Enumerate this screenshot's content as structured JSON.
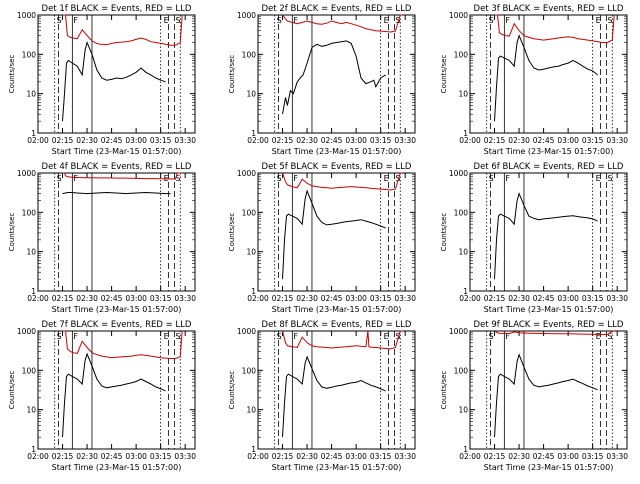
{
  "colors": {
    "events": "#000000",
    "lld": "#d00000",
    "axis": "#000000"
  },
  "shared": {
    "ylabel": "Counts/sec",
    "xlabel": "Start Time (23-Mar-15 01:57:00)",
    "xticks": [
      "02:00",
      "02:15",
      "02:30",
      "02:45",
      "03:00",
      "03:15",
      "03:30"
    ],
    "yticks": [
      "1",
      "10",
      "100",
      "1000"
    ],
    "marker_letters": [
      "S",
      "F",
      "E",
      "S"
    ]
  },
  "chart_data": [
    {
      "type": "line",
      "title": "Det 1f BLACK = Events, RED = LLD",
      "series": [
        {
          "x": [
            2.25,
            2.28,
            2.3,
            2.33,
            2.36,
            2.4,
            2.45,
            2.5,
            2.55,
            2.6,
            2.63,
            2.65,
            2.7,
            2.75,
            2.8,
            2.85,
            2.9,
            2.95,
            3.0,
            3.05,
            3.1,
            3.15,
            3.2,
            3.22,
            3.25,
            3.3,
            3.35,
            3.4,
            3.45,
            3.47
          ],
          "y": [
            1000,
            1000,
            300,
            270,
            260,
            250,
            420,
            300,
            220,
            190,
            180,
            180,
            175,
            190,
            200,
            205,
            210,
            220,
            240,
            260,
            240,
            210,
            200,
            195,
            190,
            180,
            170,
            170,
            200,
            1000
          ]
        },
        {
          "x": [
            2.25,
            2.27,
            2.29,
            2.31,
            2.35,
            2.4,
            2.45,
            2.48,
            2.5,
            2.55,
            2.6,
            2.65,
            2.7,
            2.75,
            2.8,
            2.85,
            2.9,
            2.95,
            3.0,
            3.05,
            3.1,
            3.15,
            3.2,
            3.25,
            3.3
          ],
          "y": [
            2,
            10,
            60,
            70,
            60,
            50,
            30,
            130,
            200,
            100,
            40,
            25,
            22,
            23,
            25,
            24,
            26,
            30,
            35,
            45,
            35,
            30,
            25,
            22,
            20
          ]
        }
      ]
    },
    {
      "type": "line",
      "title": "Det 2f BLACK = Events, RED = LLD",
      "series": [
        {
          "x": [
            2.25,
            2.28,
            2.3,
            2.35,
            2.4,
            2.45,
            2.5,
            2.55,
            2.6,
            2.65,
            2.7,
            2.75,
            2.8,
            2.85,
            2.9,
            2.95,
            3.0,
            3.05,
            3.1,
            3.15,
            3.2,
            3.25,
            3.3,
            3.35,
            3.4,
            3.45,
            3.47
          ],
          "y": [
            1000,
            800,
            700,
            650,
            600,
            650,
            700,
            650,
            600,
            580,
            620,
            700,
            650,
            600,
            650,
            600,
            550,
            500,
            450,
            420,
            400,
            390,
            380,
            370,
            390,
            1000,
            1000
          ]
        },
        {
          "x": [
            2.25,
            2.28,
            2.3,
            2.33,
            2.36,
            2.4,
            2.43,
            2.46,
            2.5,
            2.55,
            2.6,
            2.65,
            2.7,
            2.75,
            2.8,
            2.85,
            2.9,
            2.95,
            3.0,
            3.05,
            3.1,
            3.15,
            3.18,
            3.2,
            3.25,
            3.3
          ],
          "y": [
            3,
            8,
            5,
            12,
            10,
            20,
            25,
            30,
            60,
            150,
            180,
            160,
            170,
            190,
            200,
            210,
            220,
            190,
            90,
            25,
            18,
            20,
            22,
            15,
            25,
            30
          ]
        }
      ]
    },
    {
      "type": "line",
      "title": "Det 3f BLACK = Events, RED = LLD",
      "series": [
        {
          "x": [
            2.25,
            2.28,
            2.3,
            2.33,
            2.36,
            2.4,
            2.45,
            2.5,
            2.55,
            2.6,
            2.65,
            2.7,
            2.75,
            2.8,
            2.85,
            2.9,
            2.95,
            3.0,
            3.05,
            3.1,
            3.15,
            3.2,
            3.25,
            3.3,
            3.35,
            3.4,
            3.45,
            3.47
          ],
          "y": [
            1000,
            1000,
            350,
            320,
            300,
            290,
            600,
            400,
            300,
            270,
            250,
            240,
            230,
            240,
            250,
            260,
            270,
            280,
            270,
            250,
            240,
            230,
            220,
            210,
            200,
            200,
            230,
            1000
          ]
        },
        {
          "x": [
            2.25,
            2.27,
            2.29,
            2.31,
            2.35,
            2.4,
            2.45,
            2.48,
            2.5,
            2.55,
            2.6,
            2.65,
            2.7,
            2.75,
            2.8,
            2.85,
            2.9,
            2.95,
            3.0,
            3.05,
            3.1,
            3.15,
            3.2,
            3.25,
            3.3
          ],
          "y": [
            2,
            15,
            80,
            90,
            80,
            70,
            50,
            200,
            300,
            150,
            70,
            45,
            40,
            42,
            45,
            48,
            50,
            55,
            60,
            70,
            60,
            50,
            42,
            38,
            30
          ]
        }
      ]
    },
    {
      "type": "line",
      "title": "Det 4f BLACK = Events, RED = LLD",
      "series": [
        {
          "x": [
            2.25,
            2.27,
            2.28,
            2.3,
            2.35,
            2.4,
            2.5,
            2.6,
            2.7,
            2.8,
            2.9,
            3.0,
            3.1,
            3.2,
            3.3,
            3.35,
            3.4,
            3.42,
            3.45,
            3.47
          ],
          "y": [
            1000,
            1000,
            850,
            800,
            780,
            770,
            760,
            750,
            750,
            740,
            740,
            730,
            720,
            720,
            710,
            710,
            700,
            1000,
            1000,
            1000
          ]
        },
        {
          "x": [
            2.25,
            2.28,
            2.3,
            2.35,
            2.4,
            2.5,
            2.6,
            2.7,
            2.8,
            2.9,
            3.0,
            3.1,
            3.2,
            3.3,
            3.35
          ],
          "y": [
            300,
            310,
            320,
            320,
            310,
            300,
            310,
            320,
            310,
            300,
            310,
            320,
            310,
            300,
            300
          ]
        }
      ]
    },
    {
      "type": "line",
      "title": "Det 5f BLACK = Events, RED = LLD",
      "series": [
        {
          "x": [
            2.25,
            2.28,
            2.3,
            2.35,
            2.4,
            2.45,
            2.5,
            2.55,
            2.6,
            2.65,
            2.7,
            2.75,
            2.8,
            2.85,
            2.9,
            2.95,
            3.0,
            3.05,
            3.1,
            3.15,
            3.2,
            3.25,
            3.3,
            3.35,
            3.4,
            3.45,
            3.47
          ],
          "y": [
            1000,
            600,
            500,
            450,
            420,
            700,
            550,
            470,
            450,
            430,
            420,
            410,
            420,
            430,
            440,
            450,
            440,
            430,
            420,
            410,
            400,
            390,
            380,
            370,
            390,
            1000,
            1000
          ]
        },
        {
          "x": [
            2.25,
            2.27,
            2.29,
            2.31,
            2.35,
            2.4,
            2.45,
            2.48,
            2.5,
            2.55,
            2.6,
            2.65,
            2.7,
            2.75,
            2.8,
            2.85,
            2.9,
            2.95,
            3.0,
            3.05,
            3.1,
            3.15,
            3.2,
            3.25,
            3.3
          ],
          "y": [
            2,
            20,
            80,
            90,
            80,
            70,
            50,
            220,
            350,
            170,
            80,
            55,
            48,
            50,
            52,
            55,
            58,
            60,
            62,
            65,
            60,
            55,
            50,
            45,
            40
          ]
        }
      ]
    },
    {
      "type": "line",
      "title": "Det 6f BLACK = Events, RED = LLD",
      "series": [
        {
          "x": [
            2.25,
            2.27,
            2.29,
            2.31,
            2.35,
            2.4,
            2.45,
            2.48,
            2.5,
            2.55,
            2.6,
            2.65,
            2.7,
            2.75,
            2.8,
            2.85,
            2.9,
            2.95,
            3.0,
            3.05,
            3.1,
            3.15,
            3.2,
            3.25,
            3.3
          ],
          "y": [
            2,
            20,
            80,
            90,
            80,
            70,
            50,
            200,
            300,
            150,
            80,
            70,
            65,
            68,
            70,
            72,
            75,
            78,
            80,
            82,
            78,
            75,
            72,
            68,
            60
          ]
        }
      ]
    },
    {
      "type": "line",
      "title": "Det 7f BLACK = Events, RED = LLD",
      "series": [
        {
          "x": [
            2.25,
            2.28,
            2.3,
            2.33,
            2.36,
            2.4,
            2.45,
            2.5,
            2.55,
            2.6,
            2.65,
            2.7,
            2.75,
            2.8,
            2.85,
            2.9,
            2.95,
            3.0,
            3.05,
            3.1,
            3.15,
            3.2,
            3.25,
            3.3,
            3.35,
            3.4,
            3.45,
            3.47
          ],
          "y": [
            1000,
            1000,
            350,
            300,
            280,
            270,
            550,
            380,
            280,
            250,
            230,
            220,
            210,
            215,
            220,
            225,
            230,
            240,
            250,
            240,
            230,
            220,
            210,
            205,
            200,
            200,
            220,
            1000
          ]
        },
        {
          "x": [
            2.25,
            2.27,
            2.29,
            2.31,
            2.35,
            2.4,
            2.45,
            2.48,
            2.5,
            2.55,
            2.6,
            2.65,
            2.7,
            2.75,
            2.8,
            2.85,
            2.9,
            2.95,
            3.0,
            3.05,
            3.1,
            3.15,
            3.2,
            3.25,
            3.3
          ],
          "y": [
            2,
            15,
            70,
            80,
            70,
            60,
            45,
            180,
            260,
            130,
            60,
            40,
            36,
            38,
            40,
            42,
            45,
            48,
            52,
            60,
            52,
            45,
            38,
            34,
            30
          ]
        }
      ]
    },
    {
      "type": "line",
      "title": "Det 8f BLACK = Events, RED = LLD",
      "series": [
        {
          "x": [
            2.25,
            2.28,
            2.3,
            2.35,
            2.4,
            2.45,
            2.5,
            2.55,
            2.6,
            2.65,
            2.7,
            2.75,
            2.8,
            2.85,
            2.9,
            2.95,
            3.0,
            3.05,
            3.1,
            3.12,
            3.13,
            3.15,
            3.2,
            3.25,
            3.3,
            3.35,
            3.4,
            3.45,
            3.47
          ],
          "y": [
            1000,
            500,
            420,
            400,
            380,
            700,
            500,
            420,
            400,
            390,
            380,
            370,
            380,
            390,
            400,
            410,
            420,
            410,
            400,
            1000,
            400,
            390,
            380,
            370,
            360,
            350,
            380,
            1000,
            1000
          ]
        },
        {
          "x": [
            2.25,
            2.27,
            2.29,
            2.31,
            2.35,
            2.4,
            2.45,
            2.48,
            2.5,
            2.55,
            2.6,
            2.65,
            2.7,
            2.75,
            2.8,
            2.85,
            2.9,
            2.95,
            3.0,
            3.05,
            3.1,
            3.15,
            3.2,
            3.25,
            3.3
          ],
          "y": [
            2,
            15,
            70,
            80,
            70,
            60,
            45,
            150,
            220,
            110,
            55,
            38,
            35,
            37,
            40,
            42,
            45,
            48,
            50,
            55,
            48,
            42,
            38,
            34,
            30
          ]
        }
      ]
    },
    {
      "type": "line",
      "title": "Det 9f BLACK = Events, RED = LLD",
      "series": [
        {
          "x": [
            2.25,
            2.28,
            2.3,
            2.35,
            2.4,
            2.45,
            2.5,
            2.6,
            2.7,
            2.8,
            2.9,
            3.0,
            3.1,
            3.2,
            3.3,
            3.35,
            3.4,
            3.45,
            3.47
          ],
          "y": [
            1000,
            900,
            880,
            870,
            860,
            950,
            900,
            880,
            870,
            860,
            850,
            850,
            840,
            830,
            820,
            820,
            810,
            1000,
            1000
          ]
        },
        {
          "x": [
            2.25,
            2.27,
            2.29,
            2.31,
            2.35,
            2.4,
            2.45,
            2.48,
            2.5,
            2.55,
            2.6,
            2.65,
            2.7,
            2.75,
            2.8,
            2.85,
            2.9,
            2.95,
            3.0,
            3.05,
            3.1,
            3.15,
            3.2,
            3.25,
            3.3
          ],
          "y": [
            2,
            15,
            70,
            80,
            70,
            60,
            45,
            170,
            250,
            120,
            60,
            42,
            38,
            40,
            42,
            45,
            48,
            52,
            55,
            60,
            52,
            46,
            40,
            36,
            32
          ]
        }
      ]
    }
  ]
}
